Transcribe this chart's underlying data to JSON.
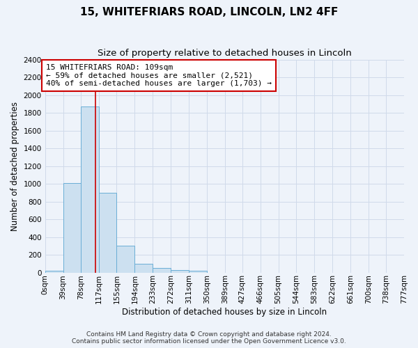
{
  "title": "15, WHITEFRIARS ROAD, LINCOLN, LN2 4FF",
  "subtitle": "Size of property relative to detached houses in Lincoln",
  "xlabel": "Distribution of detached houses by size in Lincoln",
  "ylabel": "Number of detached properties",
  "bin_edges": [
    0,
    39,
    78,
    117,
    155,
    194,
    233,
    272,
    311,
    350,
    389,
    427,
    466,
    505,
    544,
    583,
    622,
    661,
    700,
    738,
    777
  ],
  "bin_counts": [
    20,
    1010,
    1870,
    900,
    300,
    100,
    50,
    30,
    20,
    0,
    0,
    0,
    0,
    0,
    0,
    0,
    0,
    0,
    0,
    0
  ],
  "bar_color": "#cce0f0",
  "bar_edge_color": "#6aaed6",
  "vline_color": "#cc0000",
  "vline_x": 109,
  "annotation_text": "15 WHITEFRIARS ROAD: 109sqm\n← 59% of detached houses are smaller (2,521)\n40% of semi-detached houses are larger (1,703) →",
  "annotation_box_color": "#ffffff",
  "annotation_box_edge": "#cc0000",
  "ylim": [
    0,
    2400
  ],
  "yticks": [
    0,
    200,
    400,
    600,
    800,
    1000,
    1200,
    1400,
    1600,
    1800,
    2000,
    2200,
    2400
  ],
  "xtick_labels": [
    "0sqm",
    "39sqm",
    "78sqm",
    "117sqm",
    "155sqm",
    "194sqm",
    "233sqm",
    "272sqm",
    "311sqm",
    "350sqm",
    "389sqm",
    "427sqm",
    "466sqm",
    "505sqm",
    "544sqm",
    "583sqm",
    "622sqm",
    "661sqm",
    "700sqm",
    "738sqm",
    "777sqm"
  ],
  "footer_line1": "Contains HM Land Registry data © Crown copyright and database right 2024.",
  "footer_line2": "Contains public sector information licensed under the Open Government Licence v3.0.",
  "bg_color": "#eef3fa",
  "plot_bg_color": "#eef3fa",
  "grid_color": "#d0daea",
  "title_fontsize": 11,
  "subtitle_fontsize": 9.5,
  "axis_label_fontsize": 8.5,
  "tick_fontsize": 7.5,
  "annotation_fontsize": 8,
  "footer_fontsize": 6.5
}
